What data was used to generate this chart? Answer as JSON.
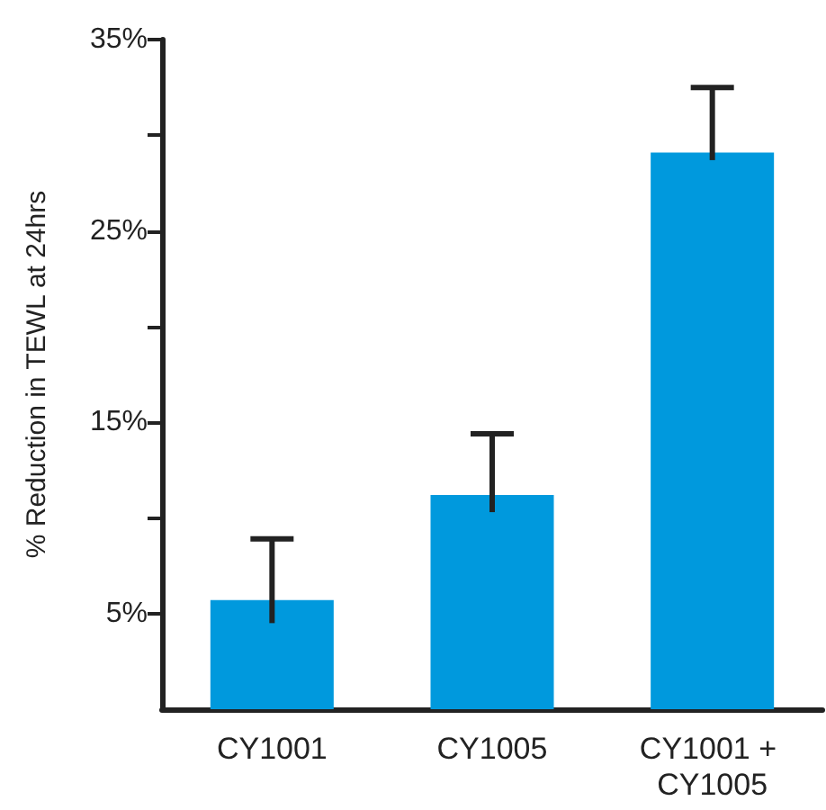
{
  "chart_data": {
    "type": "bar",
    "ylabel": "% Reduction in TEWL at 24hrs",
    "categories": [
      "CY1001",
      "CY1005",
      "CY1001 + CY1005"
    ],
    "values": [
      5.7,
      11.2,
      29.1
    ],
    "errors": [
      [
        4.5,
        8.9
      ],
      [
        10.3,
        14.4
      ],
      [
        28.7,
        32.5
      ]
    ],
    "color": "#0099dd",
    "ylim": [
      0,
      35
    ],
    "yticks": [
      {
        "value": 5,
        "label": "5%"
      },
      {
        "value": 10,
        "label": null
      },
      {
        "value": 15,
        "label": "15%"
      },
      {
        "value": 20,
        "label": null
      },
      {
        "value": 25,
        "label": "25%"
      },
      {
        "value": 30,
        "label": null
      },
      {
        "value": 35,
        "label": "35%"
      }
    ],
    "grid": false
  }
}
